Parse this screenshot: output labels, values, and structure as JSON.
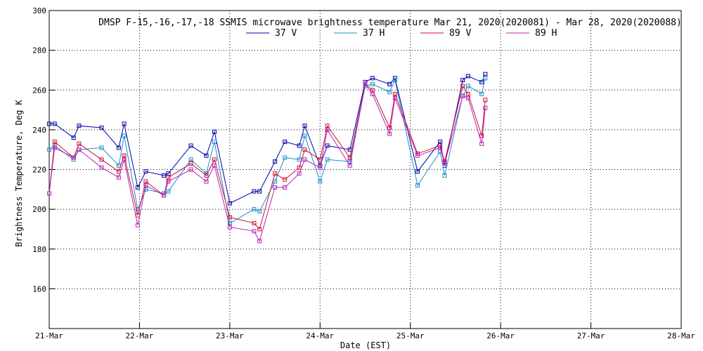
{
  "chart_data": {
    "type": "line",
    "title": "DMSP F-15,-16,-17,-18 SSMIS microwave brightness temperature Mar 21, 2020(2020081) - Mar 28, 2020(2020088)",
    "xlabel": "Date (EST)",
    "ylabel": "Brightness Temperature, Deg K",
    "xlim": [
      0,
      7
    ],
    "ylim": [
      140,
      300
    ],
    "grid": true,
    "legend_position": "top-center",
    "x_ticks": [
      {
        "value": 0,
        "label": "21-Mar"
      },
      {
        "value": 1,
        "label": "22-Mar"
      },
      {
        "value": 2,
        "label": "23-Mar"
      },
      {
        "value": 3,
        "label": "24-Mar"
      },
      {
        "value": 4,
        "label": "25-Mar"
      },
      {
        "value": 5,
        "label": "26-Mar"
      },
      {
        "value": 6,
        "label": "27-Mar"
      },
      {
        "value": 7,
        "label": "28-Mar"
      }
    ],
    "y_ticks": [
      {
        "value": 160,
        "label": "160"
      },
      {
        "value": 180,
        "label": "180"
      },
      {
        "value": 200,
        "label": "200"
      },
      {
        "value": 220,
        "label": "220"
      },
      {
        "value": 240,
        "label": "240"
      },
      {
        "value": 260,
        "label": "260"
      },
      {
        "value": 280,
        "label": "280"
      },
      {
        "value": 300,
        "label": "300"
      }
    ],
    "x": [
      0.0,
      0.06,
      0.27,
      0.33,
      0.58,
      0.77,
      0.83,
      0.98,
      1.07,
      1.27,
      1.32,
      1.57,
      1.74,
      1.83,
      2.0,
      2.27,
      2.33,
      2.5,
      2.61,
      2.77,
      2.83,
      3.0,
      3.08,
      3.33,
      3.5,
      3.58,
      3.77,
      3.83,
      4.08,
      4.33,
      4.38,
      4.58,
      4.64,
      4.79,
      4.83
    ],
    "series": [
      {
        "name": "37 V",
        "color": "#0000aa",
        "values": [
          243,
          243,
          236,
          242,
          241,
          231,
          243,
          211,
          219,
          217,
          218,
          232,
          227,
          239,
          203,
          209,
          209,
          224,
          234,
          232,
          242,
          222,
          232,
          230,
          264,
          266,
          263,
          266,
          219,
          234,
          222,
          265,
          267,
          264,
          268
        ]
      },
      {
        "name": "37 H",
        "color": "#1a8fc9",
        "values": [
          230,
          232,
          225,
          230,
          231,
          222,
          237,
          200,
          210,
          208,
          209,
          225,
          218,
          234,
          193,
          200,
          199,
          214,
          226,
          225,
          237,
          214,
          225,
          224,
          262,
          263,
          259,
          265,
          212,
          229,
          217,
          257,
          262,
          258,
          266
        ]
      },
      {
        "name": "89 V",
        "color": "#cc1133",
        "values": [
          208,
          234,
          226,
          233,
          225,
          219,
          227,
          197,
          214,
          207,
          216,
          223,
          217,
          225,
          196,
          193,
          190,
          218,
          215,
          221,
          230,
          225,
          242,
          226,
          263,
          260,
          241,
          258,
          228,
          232,
          224,
          262,
          258,
          237,
          255
        ]
      },
      {
        "name": "89 H",
        "color": "#bb22bb",
        "values": [
          208,
          231,
          226,
          230,
          221,
          216,
          225,
          192,
          212,
          207,
          214,
          220,
          214,
          222,
          191,
          189,
          184,
          211,
          211,
          218,
          225,
          221,
          240,
          222,
          263,
          258,
          238,
          256,
          227,
          231,
          223,
          257,
          256,
          233,
          251
        ]
      }
    ]
  }
}
